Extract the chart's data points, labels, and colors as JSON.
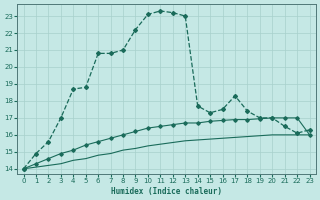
{
  "xlabel": "Humidex (Indice chaleur)",
  "bg_color": "#c5e8e5",
  "grid_color": "#a8d0cc",
  "line_color": "#1a6b5a",
  "xlim": [
    -0.5,
    23.5
  ],
  "ylim": [
    13.7,
    23.7
  ],
  "xticks": [
    0,
    1,
    2,
    3,
    4,
    5,
    6,
    7,
    8,
    9,
    10,
    11,
    12,
    13,
    14,
    15,
    16,
    17,
    18,
    19,
    20,
    21,
    22,
    23
  ],
  "yticks": [
    14,
    15,
    16,
    17,
    18,
    19,
    20,
    21,
    22,
    23
  ],
  "curve1_x": [
    0,
    1,
    2,
    3,
    4,
    5,
    6,
    7,
    8,
    9,
    10,
    11,
    12,
    13,
    14,
    15,
    16,
    17,
    18,
    19,
    20,
    21,
    22,
    23
  ],
  "curve1_y": [
    14.0,
    14.9,
    15.6,
    17.0,
    18.7,
    18.8,
    20.8,
    20.8,
    21.0,
    22.2,
    23.1,
    23.3,
    23.2,
    23.0,
    17.7,
    17.3,
    17.5,
    18.3,
    17.4,
    17.0,
    17.0,
    16.5,
    16.1,
    16.3
  ],
  "curve2_x": [
    0,
    1,
    2,
    3,
    4,
    5,
    6,
    7,
    8,
    9,
    10,
    11,
    12,
    13,
    14,
    15,
    16,
    17,
    18,
    19,
    20,
    21,
    22,
    23
  ],
  "curve2_y": [
    14.0,
    14.3,
    14.6,
    14.9,
    15.1,
    15.4,
    15.6,
    15.8,
    16.0,
    16.2,
    16.4,
    16.5,
    16.6,
    16.7,
    16.7,
    16.8,
    16.85,
    16.9,
    16.9,
    16.95,
    17.0,
    17.0,
    17.0,
    16.0
  ],
  "curve3_x": [
    0,
    1,
    2,
    3,
    4,
    5,
    6,
    7,
    8,
    9,
    10,
    11,
    12,
    13,
    14,
    15,
    16,
    17,
    18,
    19,
    20,
    21,
    22,
    23
  ],
  "curve3_y": [
    14.0,
    14.1,
    14.2,
    14.3,
    14.5,
    14.6,
    14.8,
    14.9,
    15.1,
    15.2,
    15.35,
    15.45,
    15.55,
    15.65,
    15.7,
    15.75,
    15.8,
    15.85,
    15.9,
    15.95,
    16.0,
    16.0,
    16.0,
    16.0
  ]
}
